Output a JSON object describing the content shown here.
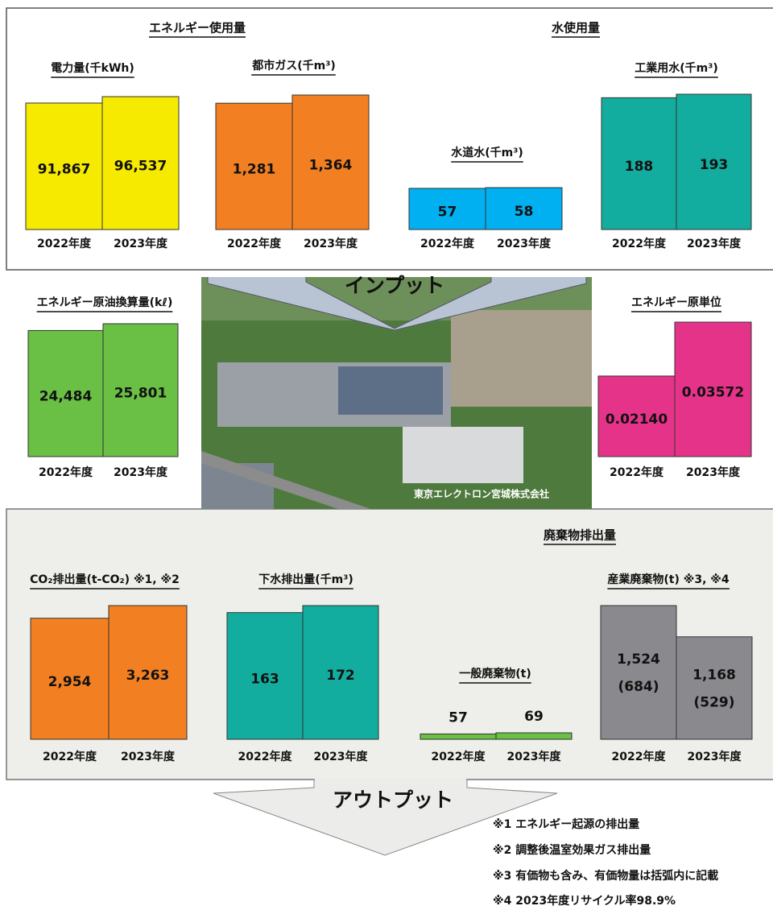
{
  "sections": {
    "energy": "エネルギー使用量",
    "water": "水使用量",
    "waste": "廃棄物排出量"
  },
  "input": "インプット",
  "output": "アウトプット",
  "photo_caption": "東京エレクトロン宮城株式会社",
  "notes": [
    "※1 エネルギー起源の排出量",
    "※2 調整後温室効果ガス排出量",
    "※3 有価物も含み、有価物量は括弧内に記載",
    "※4 2023年度リサイクル率98.9%"
  ],
  "chart_data": [
    {
      "type": "bar",
      "title": "電力量(千kWh)",
      "categories": [
        "2022年度",
        "2023年度"
      ],
      "values": [
        91867,
        96537
      ],
      "value_labels": [
        "91,867",
        "96,537"
      ],
      "color": "#f5ea00"
    },
    {
      "type": "bar",
      "title": "都市ガス(千m³)",
      "categories": [
        "2022年度",
        "2023年度"
      ],
      "values": [
        1281,
        1364
      ],
      "value_labels": [
        "1,281",
        "1,364"
      ],
      "color": "#f28022"
    },
    {
      "type": "bar",
      "title": "水道水(千m³)",
      "categories": [
        "2022年度",
        "2023年度"
      ],
      "values": [
        57,
        58
      ],
      "color": "#00b0f0"
    },
    {
      "type": "bar",
      "title": "工業用水(千m³)",
      "categories": [
        "2022年度",
        "2023年度"
      ],
      "values": [
        188,
        193
      ],
      "color": "#13ad9f"
    },
    {
      "type": "bar",
      "title": "エネルギー原油換算量(kℓ)",
      "categories": [
        "2022年度",
        "2023年度"
      ],
      "values": [
        24484,
        25801
      ],
      "value_labels": [
        "24,484",
        "25,801"
      ],
      "color": "#6abf45"
    },
    {
      "type": "bar",
      "title": "エネルギー原単位",
      "categories": [
        "2022年度",
        "2023年度"
      ],
      "values": [
        0.0214,
        0.03572
      ],
      "value_labels": [
        "0.02140",
        "0.03572"
      ],
      "color": "#e6338a"
    },
    {
      "type": "bar",
      "title": "CO₂排出量(t-CO₂) ※1, ※2",
      "categories": [
        "2022年度",
        "2023年度"
      ],
      "values": [
        2954,
        3263
      ],
      "value_labels": [
        "2,954",
        "3,263"
      ],
      "color": "#f28022"
    },
    {
      "type": "bar",
      "title": "下水排出量(千m³)",
      "categories": [
        "2022年度",
        "2023年度"
      ],
      "values": [
        163,
        172
      ],
      "color": "#13ad9f"
    },
    {
      "type": "bar",
      "title": "一般廃棄物(t)",
      "categories": [
        "2022年度",
        "2023年度"
      ],
      "values": [
        57,
        69
      ],
      "color": "#6abf45"
    },
    {
      "type": "bar",
      "title": "産業廃棄物(t) ※3, ※4",
      "categories": [
        "2022年度",
        "2023年度"
      ],
      "values": [
        1524,
        1168
      ],
      "value_labels": [
        "1,524",
        "1,168"
      ],
      "sub_values": [
        684,
        529
      ],
      "sub_value_labels": [
        "(684)",
        "(529)"
      ],
      "color": "#8a8a8e"
    }
  ]
}
